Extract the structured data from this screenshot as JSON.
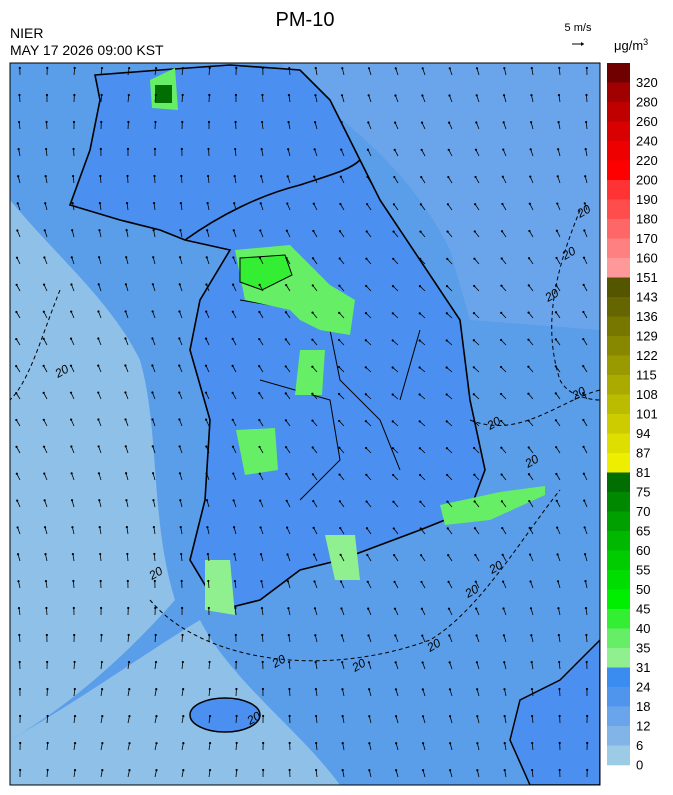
{
  "header": {
    "title": "PM-10",
    "agency": "NIER",
    "datetime": "MAY 17 2026 09:00 KST"
  },
  "wind_legend": {
    "label": "5 m/s"
  },
  "colorbar": {
    "unit": "μg/m",
    "unit_sup": "3",
    "labels": [
      320,
      280,
      260,
      240,
      220,
      200,
      190,
      180,
      170,
      160,
      151,
      143,
      136,
      129,
      122,
      115,
      108,
      101,
      94,
      87,
      81,
      75,
      70,
      65,
      60,
      55,
      50,
      45,
      40,
      35,
      31,
      24,
      18,
      12,
      6,
      0
    ],
    "colors": [
      "#700000",
      "#a00000",
      "#c00000",
      "#d80000",
      "#ee0000",
      "#ff0000",
      "#ff3333",
      "#ff4c4c",
      "#ff6666",
      "#ff8080",
      "#ff9999",
      "#555500",
      "#666600",
      "#777700",
      "#888800",
      "#999900",
      "#aaaa00",
      "#bbbb00",
      "#cccc00",
      "#dede00",
      "#eeee00",
      "#006e00",
      "#008800",
      "#00a000",
      "#00b800",
      "#00cc00",
      "#00dd00",
      "#00ee00",
      "#33ee33",
      "#66ee66",
      "#90f090",
      "#3a8cf0",
      "#4f95ee",
      "#6aa5ec",
      "#82b4e8",
      "#9ccbe6"
    ]
  },
  "contour_labels": [
    "20",
    "20",
    "20",
    "20",
    "20",
    "20",
    "20",
    "20",
    "20",
    "20",
    "20",
    "20",
    "20",
    "20"
  ]
}
